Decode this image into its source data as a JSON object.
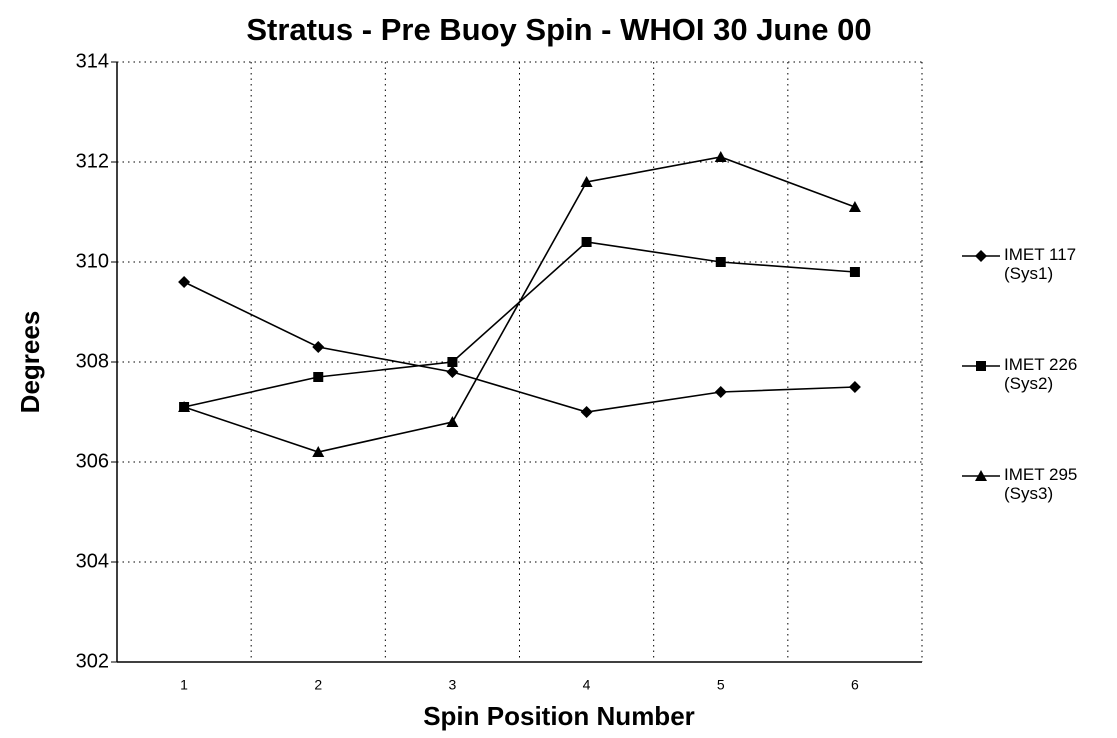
{
  "chart_data": {
    "type": "line",
    "title": "Stratus - Pre Buoy Spin - WHOI 30 June 00",
    "x_label": "Spin Position Number",
    "y_label": "Degrees",
    "categories": [
      "1",
      "2",
      "3",
      "4",
      "5",
      "6"
    ],
    "series": [
      {
        "name": "IMET 117 (Sys1)",
        "color": "#000000",
        "marker": "diamond",
        "values": [
          309.6,
          308.3,
          307.8,
          307.0,
          307.4,
          307.5
        ]
      },
      {
        "name": "IMET 226 (Sys2)",
        "color": "#000000",
        "marker": "square",
        "values": [
          307.1,
          307.7,
          308.0,
          310.4,
          310.0,
          309.8
        ]
      },
      {
        "name": "IMET 295 (Sys3)",
        "color": "#000000",
        "marker": "triangle",
        "values": [
          307.1,
          306.2,
          306.8,
          311.6,
          312.1,
          311.1
        ]
      }
    ],
    "ylim": [
      302,
      314
    ],
    "yticks": [
      302,
      304,
      306,
      308,
      310,
      312,
      314
    ],
    "grid": true,
    "legend": "right"
  }
}
